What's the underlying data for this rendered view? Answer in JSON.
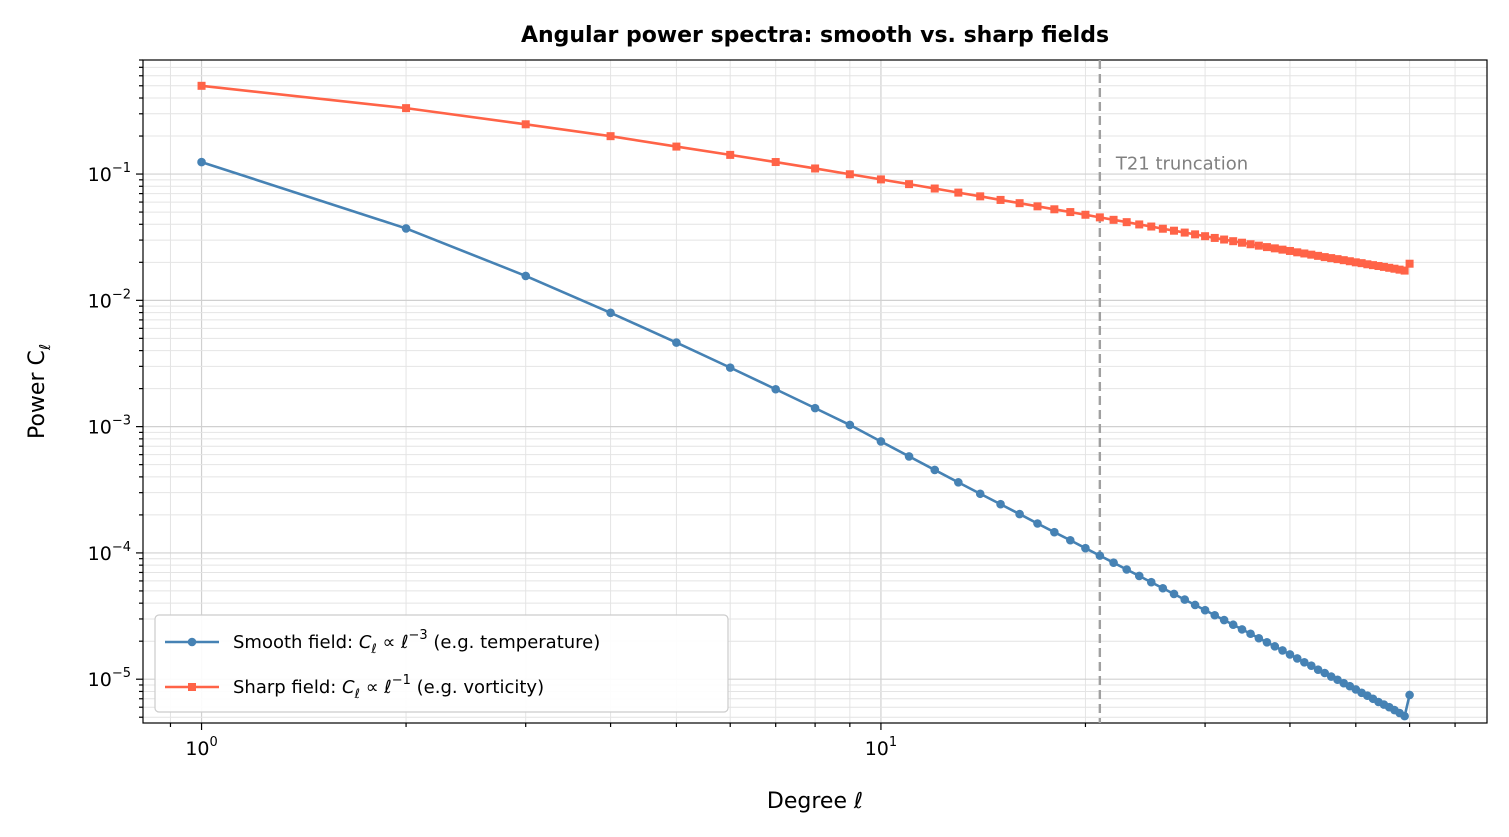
{
  "chart_data": {
    "type": "line",
    "title": "Angular power spectra: smooth vs. sharp fields",
    "xlabel": "Degree ℓ",
    "ylabel": "Power C_ℓ",
    "xscale": "log",
    "yscale": "log",
    "xlim": [
      0.82,
      78
    ],
    "ylim": [
      4.5e-06,
      0.8
    ],
    "x_ticks": [
      {
        "value": 1,
        "base": "10",
        "exp": "0"
      },
      {
        "value": 10,
        "base": "10",
        "exp": "1"
      }
    ],
    "y_ticks": [
      {
        "value": 0.1,
        "base": "10",
        "exp": "−1"
      },
      {
        "value": 0.01,
        "base": "10",
        "exp": "−2"
      },
      {
        "value": 0.001,
        "base": "10",
        "exp": "−3"
      },
      {
        "value": 0.0001,
        "base": "10",
        "exp": "−4"
      },
      {
        "value": 1e-05,
        "base": "10",
        "exp": "−5"
      }
    ],
    "grid": true,
    "legend_position": "lower-left",
    "series": [
      {
        "name": "Smooth field: C_ℓ ∝ ℓ^−3 (e.g. temperature)",
        "legend_parts": [
          "Smooth field: ",
          "C",
          "ℓ",
          " ∝ ℓ",
          "−3",
          " (e.g. temperature)"
        ],
        "color": "#4682b4",
        "marker": "circle",
        "x_range": [
          1,
          60
        ],
        "values": [
          0.1244,
          0.0371,
          0.01561,
          0.00797,
          0.00463,
          0.002932,
          0.001977,
          0.001401,
          0.001032,
          0.000763,
          0.000581,
          0.000454,
          0.000362,
          0.000294,
          0.000243,
          0.000203,
          0.000171,
          0.000146,
          0.000126,
          0.000109,
          9.52e-05,
          8.37e-05,
          7.39e-05,
          6.57e-05,
          5.86e-05,
          5.25e-05,
          4.73e-05,
          4.27e-05,
          3.87e-05,
          3.52e-05,
          3.21e-05,
          2.94e-05,
          2.7e-05,
          2.48e-05,
          2.29e-05,
          2.11e-05,
          1.96e-05,
          1.82e-05,
          1.69e-05,
          1.57e-05,
          1.46e-05,
          1.36e-05,
          1.28e-05,
          1.19e-05,
          1.12e-05,
          1.05e-05,
          9.9e-06,
          9.3e-06,
          8.8e-06,
          8.3e-06,
          7.8e-06,
          7.4e-06,
          7e-06,
          6.6e-06,
          6.3e-06,
          6e-06,
          5.7e-06,
          5.4e-06,
          5.1e-06,
          7.5e-06
        ]
      },
      {
        "name": "Sharp field: C_ℓ ∝ ℓ^−1 (e.g. vorticity)",
        "legend_parts": [
          "Sharp field: ",
          "C",
          "ℓ",
          " ∝ ℓ",
          "−1",
          " (e.g. vorticity)"
        ],
        "color": "#ff6347",
        "marker": "square",
        "x_range": [
          1,
          60
        ],
        "values": [
          0.4997,
          0.3326,
          0.2477,
          0.1995,
          0.165,
          0.1418,
          0.1245,
          0.1107,
          0.0996,
          0.0907,
          0.0832,
          0.0768,
          0.0713,
          0.0666,
          0.0624,
          0.0588,
          0.0555,
          0.0526,
          0.05,
          0.0476,
          0.0454,
          0.0434,
          0.0416,
          0.0399,
          0.0384,
          0.0369,
          0.0356,
          0.0344,
          0.0333,
          0.0322,
          0.0312,
          0.0303,
          0.0294,
          0.0286,
          0.0278,
          0.0271,
          0.0264,
          0.0258,
          0.0252,
          0.0246,
          0.024,
          0.0235,
          0.023,
          0.0225,
          0.022,
          0.0216,
          0.0212,
          0.0208,
          0.0204,
          0.02,
          0.0197,
          0.0193,
          0.019,
          0.0187,
          0.0184,
          0.0181,
          0.0178,
          0.0175,
          0.0172,
          0.0195
        ]
      }
    ],
    "vline": {
      "x": 21,
      "label": "T21 truncation",
      "color": "#a0a0a0",
      "text_y": 0.105
    }
  }
}
